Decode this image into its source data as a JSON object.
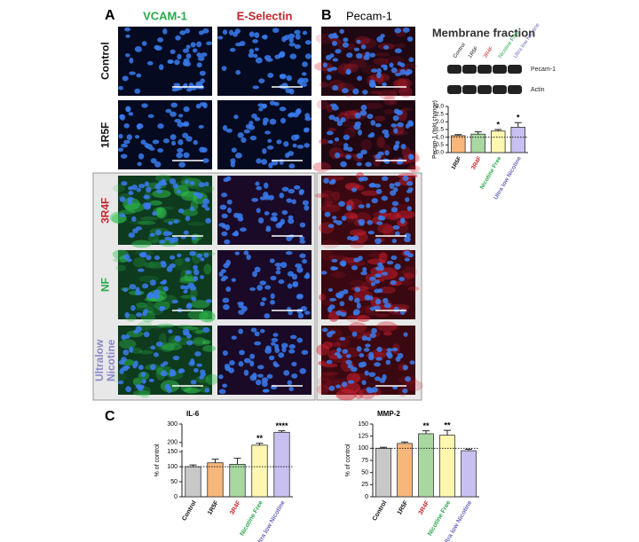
{
  "figure": {
    "panel_a": {
      "label": "A",
      "columns": [
        "VCAM-1",
        "E-Selectin"
      ],
      "column_colors": [
        "#2aa84a",
        "#c0282d"
      ],
      "rows": [
        "Control",
        "1R5F",
        "3R4F",
        "NF",
        "Ultralow Nicotine"
      ],
      "row_colors": [
        "#111111",
        "#111111",
        "#c0282d",
        "#2aa84a",
        "#8a87c8"
      ]
    },
    "panel_b": {
      "label": "B",
      "title": "Pecam-1",
      "inset_title": "Membrane fraction",
      "lanes": [
        "Control",
        "1R5F",
        "3R4F",
        "Nicotine Free",
        "Ultra low Nicotine"
      ],
      "lane_colors": [
        "#111111",
        "#111111",
        "#c0282d",
        "#2aa84a",
        "#6a67b8"
      ],
      "bands": [
        "Pecam-1",
        "Actin"
      ]
    },
    "panel_c": {
      "label": "C"
    }
  },
  "chart_data": [
    {
      "type": "bar",
      "ylabel": "Pecam-1 (fold change)",
      "categories": [
        "1R5F",
        "3R4F",
        "Nicotine Free",
        "Ultra low Nicotine"
      ],
      "label_colors": [
        "#111111",
        "#c0282d",
        "#2aa84a",
        "#6a67b8"
      ],
      "values": [
        1.1,
        1.2,
        1.4,
        1.65
      ],
      "errors": [
        0.07,
        0.15,
        0.1,
        0.3
      ],
      "colors": [
        "#f7b77a",
        "#a8d8a0",
        "#fff7b0",
        "#c8c0f0"
      ],
      "annotations": [
        null,
        null,
        "*",
        "*"
      ],
      "reference": 1,
      "ylim": [
        0,
        3
      ],
      "yticks": [
        {
          "value": 0,
          "label": "0.0"
        },
        0.5,
        {
          "value": 1,
          "label": "1.0"
        },
        1.5,
        {
          "value": 2,
          "label": "2.0"
        },
        2.5,
        {
          "value": 3,
          "label": "3.0"
        }
      ]
    },
    {
      "type": "bar",
      "title": "IL-6",
      "ylabel": "% of control",
      "categories": [
        "Control",
        "1R5F",
        "3R4F",
        "Nicotine Free",
        "Ultra low Nicotine"
      ],
      "label_colors": [
        "#111111",
        "#111111",
        "#c0282d",
        "#2aa84a",
        "#6a67b8"
      ],
      "values": [
        100,
        113,
        108,
        185,
        255
      ],
      "errors": [
        6,
        12,
        20,
        10,
        8
      ],
      "colors": [
        "#c8c8c8",
        "#f7b77a",
        "#a8d8a0",
        "#fff7b0",
        "#c8c0f0"
      ],
      "annotations": [
        null,
        null,
        null,
        "**",
        "****"
      ],
      "reference": 100,
      "ylim": [
        0,
        300
      ],
      "ybreak": 150,
      "yticks": [
        0,
        50,
        100,
        150,
        200,
        300
      ]
    },
    {
      "type": "bar",
      "title": "MMP-2",
      "ylabel": "% of control",
      "categories": [
        "Control",
        "1R5F",
        "3R4F",
        "Nicotine Free",
        "Ultra low Nicotine"
      ],
      "label_colors": [
        "#111111",
        "#111111",
        "#c0282d",
        "#2aa84a",
        "#6a67b8"
      ],
      "values": [
        100,
        110,
        130,
        127,
        95
      ],
      "errors": [
        2,
        3,
        6,
        10,
        3
      ],
      "colors": [
        "#c8c8c8",
        "#f7b77a",
        "#a8d8a0",
        "#fff7b0",
        "#c8c0f0"
      ],
      "annotations": [
        null,
        null,
        "**",
        "**",
        null
      ],
      "reference": 100,
      "ylim": [
        0,
        150
      ],
      "yticks": [
        0,
        25,
        50,
        75,
        100,
        125,
        150
      ]
    }
  ]
}
